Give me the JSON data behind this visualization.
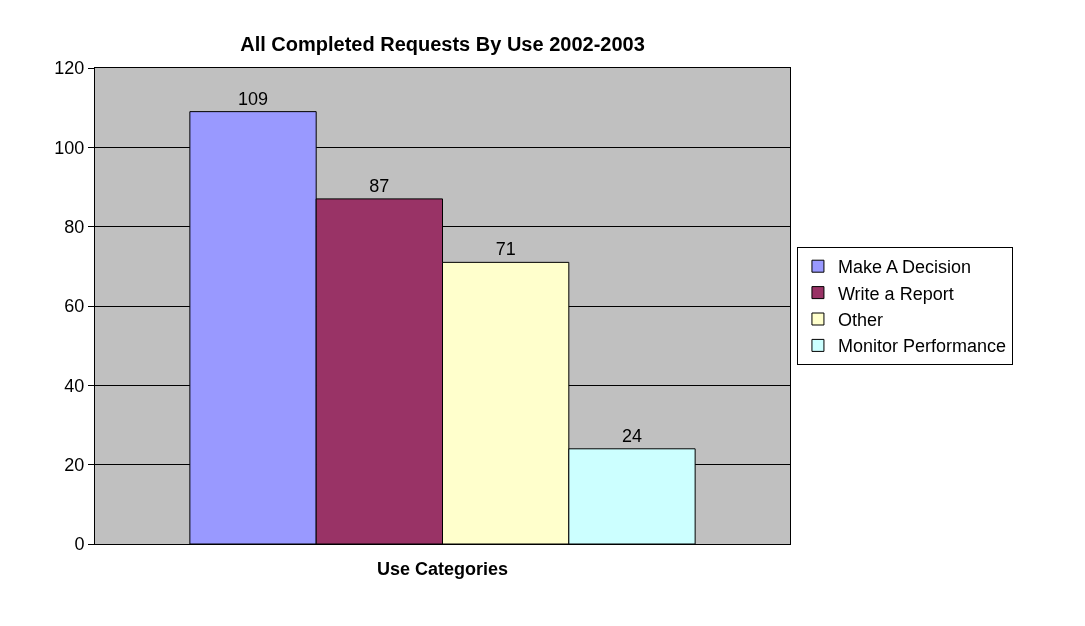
{
  "chart_data": {
    "type": "bar",
    "title": "All Completed Requests By Use 2002-2003",
    "xlabel": "Use Categories",
    "categories": [
      null
    ],
    "series": [
      {
        "name": "Make A Decision",
        "color": "#9999ff",
        "values": [
          109
        ]
      },
      {
        "name": "Write a Report",
        "color": "#993366",
        "values": [
          87
        ]
      },
      {
        "name": "Other",
        "color": "#ffffcc",
        "values": [
          71
        ]
      },
      {
        "name": "Monitor Performance",
        "color": "#ccffff",
        "values": [
          24
        ]
      }
    ],
    "ylim": [
      0,
      120
    ],
    "yticks": [
      0,
      20,
      40,
      60,
      80,
      100,
      120
    ],
    "grid": "y",
    "legend": "right",
    "data_labels": true
  }
}
